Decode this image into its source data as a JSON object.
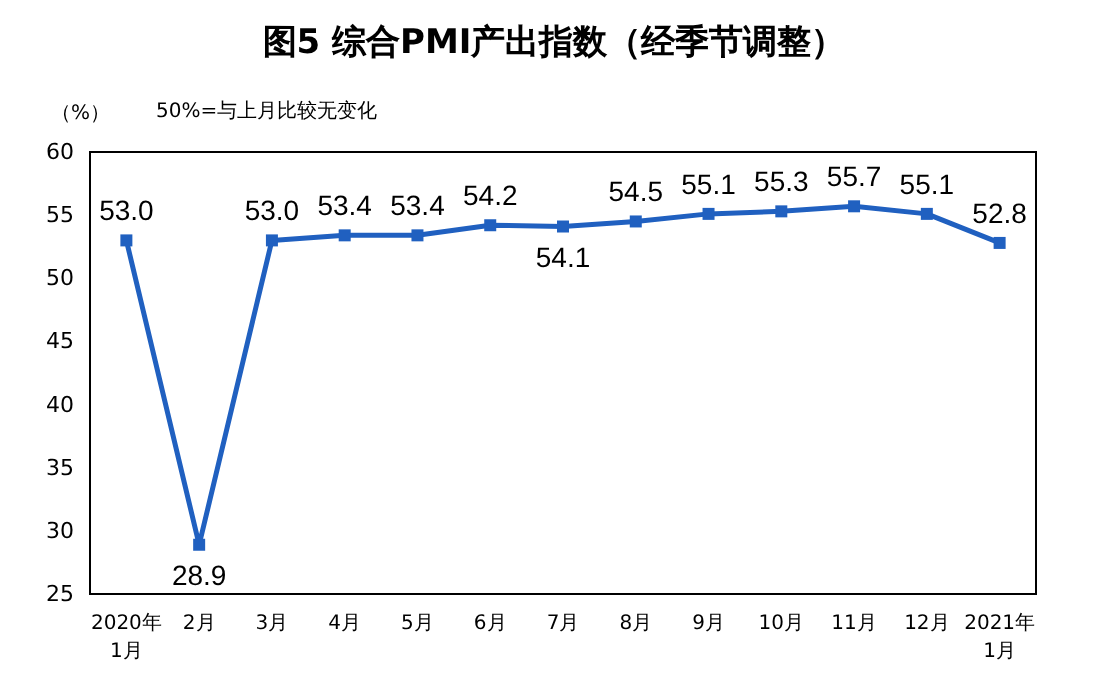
{
  "chart_data": {
    "type": "line",
    "title": "图5 综合PMI产出指数（经季节调整）",
    "ylabel": "（%）",
    "annotations": [
      "50%=与上月比较无变化"
    ],
    "categories": [
      "2020年\n1月",
      "2月",
      "3月",
      "4月",
      "5月",
      "6月",
      "7月",
      "8月",
      "9月",
      "10月",
      "11月",
      "12月",
      "2021年\n1月"
    ],
    "series": [
      {
        "color": "#2060c0",
        "values": [
          53.0,
          28.9,
          53.0,
          53.4,
          53.4,
          54.2,
          54.1,
          54.5,
          55.1,
          55.3,
          55.7,
          55.1,
          52.8
        ],
        "value_labels": [
          "53.0",
          "28.9",
          "53.0",
          "53.4",
          "53.4",
          "54.2",
          "54.1",
          "54.5",
          "55.1",
          "55.3",
          "55.7",
          "55.1",
          "52.8"
        ]
      }
    ],
    "ylim": [
      25,
      60
    ],
    "yticks": [
      25,
      30,
      35,
      40,
      45,
      50,
      55,
      60
    ],
    "grid": false,
    "marker": "square",
    "line_style": "solid"
  }
}
